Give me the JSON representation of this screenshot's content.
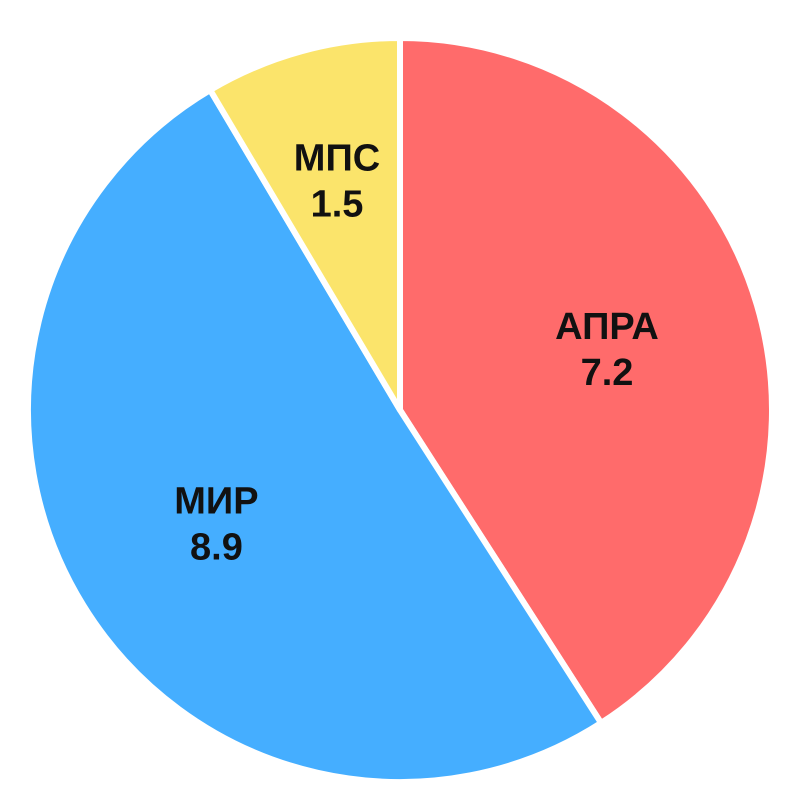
{
  "chart_data": {
    "type": "pie",
    "slices": [
      {
        "label": "АПРА",
        "value": 7.2,
        "value_text": "7.2",
        "color": "#FF6B6B"
      },
      {
        "label": "МИР",
        "value": 8.9,
        "value_text": "8.9",
        "color": "#45AEFF"
      },
      {
        "label": "МПС",
        "value": 1.5,
        "value_text": "1.5",
        "color": "#FBE46B"
      }
    ],
    "start_angle_deg": 0,
    "direction": "clockwise",
    "legend": "none"
  }
}
